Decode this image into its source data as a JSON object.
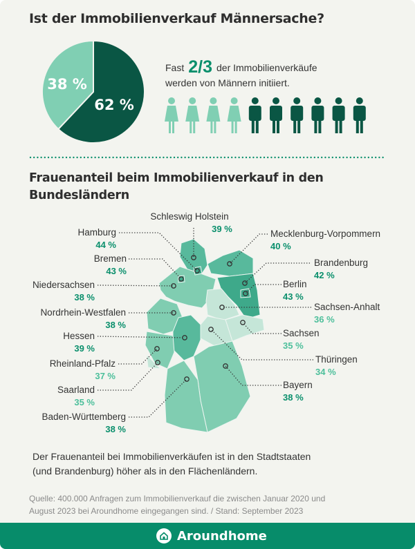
{
  "header": {
    "title": "Ist der Immobilienverkauf Männersache?"
  },
  "lead": {
    "prefix": "Fast",
    "highlight": "2/3",
    "line1_rest": "der Immobilienverkäufe",
    "line2": "werden von Männern initiiert."
  },
  "colors": {
    "dark_green": "#0a5644",
    "light_green": "#80cfb3",
    "accent": "#0a8f6c",
    "accent_light": "#4dbf9b",
    "footer": "#078c6a",
    "background": "#f3f4ef"
  },
  "people": {
    "women": 4,
    "men": 6,
    "women_icon": "female-person-icon",
    "men_icon": "male-person-icon"
  },
  "map": {
    "title": "Frauenanteil beim Immobilienverkauf in den Bundesländern"
  },
  "chart_data": [
    {
      "type": "pie",
      "slices": [
        {
          "label": "62 %",
          "value": 62,
          "color": "#0a5644"
        },
        {
          "label": "38 %",
          "value": 38,
          "color": "#80cfb3"
        }
      ]
    },
    {
      "type": "choropleth",
      "unit": "%",
      "regions": [
        {
          "name": "Schleswig Holstein",
          "value": 39,
          "label": "39 %"
        },
        {
          "name": "Hamburg",
          "value": 44,
          "label": "44 %"
        },
        {
          "name": "Mecklenburg-Vorpommern",
          "value": 40,
          "label": "40 %"
        },
        {
          "name": "Bremen",
          "value": 43,
          "label": "43 %"
        },
        {
          "name": "Brandenburg",
          "value": 42,
          "label": "42 %"
        },
        {
          "name": "Niedersachsen",
          "value": 38,
          "label": "38 %"
        },
        {
          "name": "Berlin",
          "value": 43,
          "label": "43 %"
        },
        {
          "name": "Nordrhein-Westfalen",
          "value": 38,
          "label": "38 %"
        },
        {
          "name": "Sachsen-Anhalt",
          "value": 36,
          "label": "36 %"
        },
        {
          "name": "Hessen",
          "value": 39,
          "label": "39 %"
        },
        {
          "name": "Sachsen",
          "value": 35,
          "label": "35 %"
        },
        {
          "name": "Rheinland-Pfalz",
          "value": 37,
          "label": "37 %"
        },
        {
          "name": "Thüringen",
          "value": 34,
          "label": "34 %"
        },
        {
          "name": "Saarland",
          "value": 35,
          "label": "35 %"
        },
        {
          "name": "Bayern",
          "value": 38,
          "label": "38 %"
        },
        {
          "name": "Baden-Württemberg",
          "value": 38,
          "label": "38 %"
        }
      ]
    }
  ],
  "note": {
    "line1": "Der Frauenanteil bei Immobilienverkäufen ist in den Stadtstaaten",
    "line2": "(und Brandenburg) höher als in den Flächenländern."
  },
  "source": {
    "line1": "Quelle: 400.000 Anfragen zum Immobilienverkauf die zwischen Januar 2020 und",
    "line2": "August 2023 bei Aroundhome eingegangen sind.  /  Stand: September 2023"
  },
  "footer": {
    "brand": "Aroundhome",
    "icon": "house-icon"
  }
}
